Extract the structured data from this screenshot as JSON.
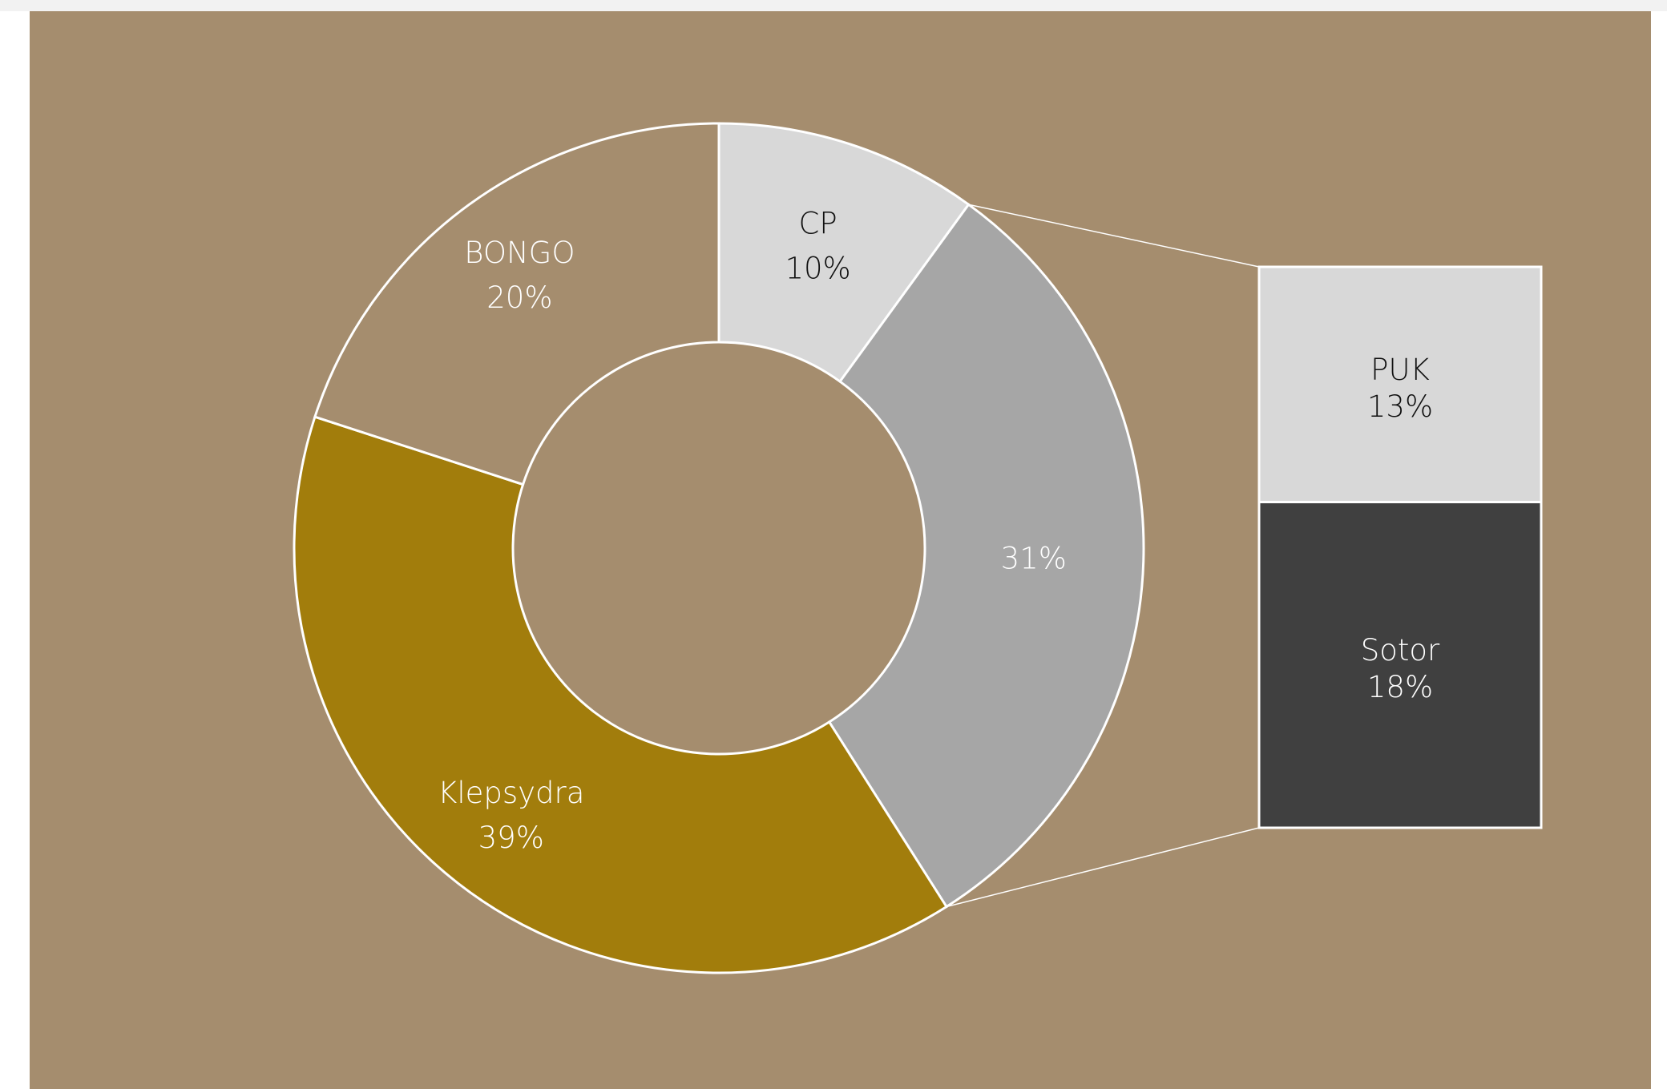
{
  "colors": {
    "background": "#a58d6e",
    "bongo": "#a58d6e",
    "cp": "#d8d8d8",
    "other_group": "#a6a6a6",
    "klepsydra": "#a27d0c",
    "puk": "#d8d8d8",
    "sotor": "#404040",
    "outline": "#ffffff",
    "label_dark": "#111111",
    "label_light": "#ffffff"
  },
  "chart_data": {
    "type": "pie",
    "subtype": "doughnut-with-bar-of-pie",
    "units": "%",
    "slices": [
      {
        "label": "CP",
        "value": 10,
        "value_label": "10%"
      },
      {
        "label": "",
        "value": 31,
        "value_label": "31%",
        "breakdown": true
      },
      {
        "label": "Klepsydra",
        "value": 39,
        "value_label": "39%"
      },
      {
        "label": "BONGO",
        "value": 20,
        "value_label": "20%"
      }
    ],
    "breakdown": [
      {
        "label": "PUK",
        "value": 13,
        "value_label": "13%"
      },
      {
        "label": "Sotor",
        "value": 18,
        "value_label": "18%"
      }
    ],
    "legend": "none"
  }
}
